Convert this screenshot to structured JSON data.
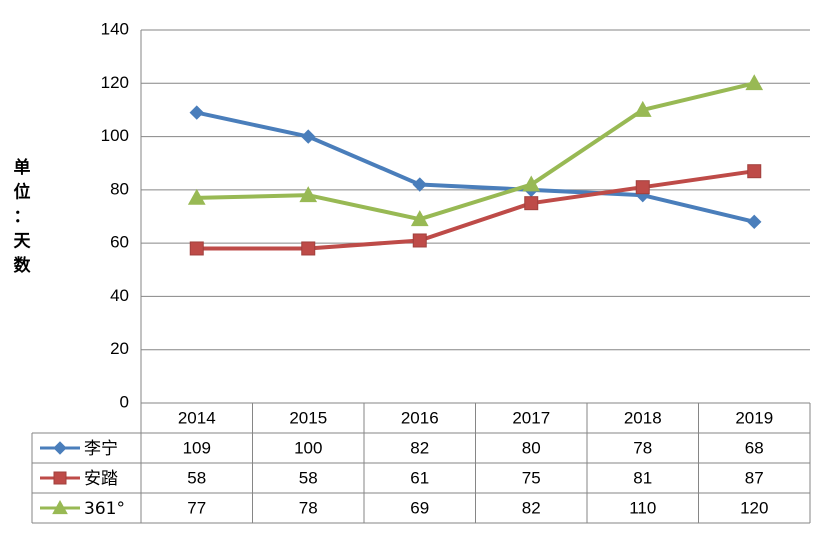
{
  "chart_data": {
    "type": "line",
    "ylabel": "单位：天数",
    "ylim": [
      0,
      140
    ],
    "yticks": [
      0,
      20,
      40,
      60,
      80,
      100,
      120,
      140
    ],
    "categories": [
      "2014",
      "2015",
      "2016",
      "2017",
      "2018",
      "2019"
    ],
    "grid": true,
    "legend": "data-table-left",
    "series": [
      {
        "name": "李宁",
        "values": [
          109,
          100,
          82,
          80,
          78,
          68
        ],
        "color": "#4a7ebb",
        "marker": "diamond"
      },
      {
        "name": "安踏",
        "values": [
          58,
          58,
          61,
          75,
          81,
          87
        ],
        "color": "#be4b48",
        "marker": "square"
      },
      {
        "name": "361°",
        "values": [
          77,
          78,
          69,
          82,
          110,
          120
        ],
        "color": "#98b954",
        "marker": "triangle"
      }
    ]
  }
}
